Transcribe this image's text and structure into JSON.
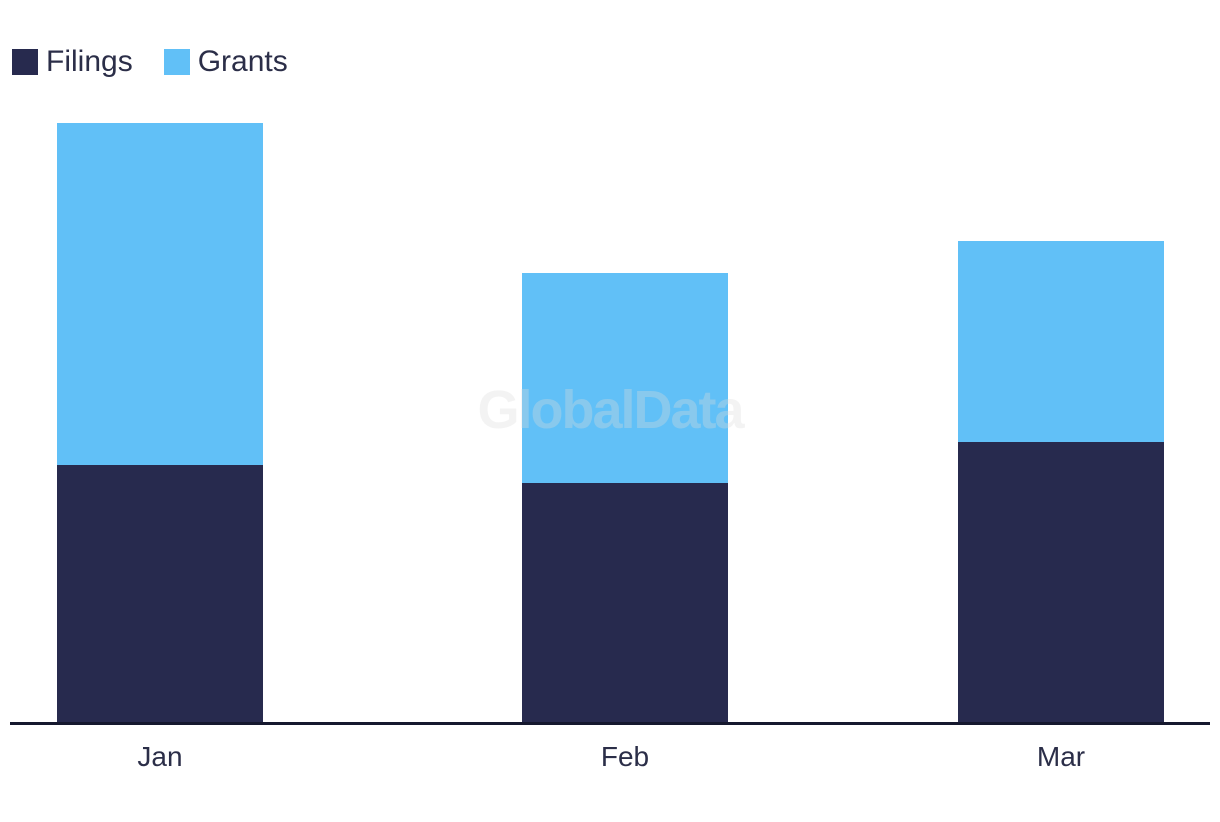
{
  "watermark": {
    "text": "GlobalData"
  },
  "legend": {
    "items": [
      {
        "label": "Filings",
        "color": "#272A4E"
      },
      {
        "label": "Grants",
        "color": "#61C0F7"
      }
    ]
  },
  "chart_data": {
    "type": "bar",
    "stacked": true,
    "title": "",
    "xlabel": "",
    "ylabel": "",
    "categories": [
      "Jan",
      "Feb",
      "Mar"
    ],
    "series": [
      {
        "name": "Filings",
        "color": "#272A4E",
        "values": [
          257,
          239,
          280
        ]
      },
      {
        "name": "Grants",
        "color": "#61C0F7",
        "values": [
          342,
          210,
          201
        ]
      }
    ],
    "stack_totals": [
      599,
      449,
      481
    ],
    "value_axis": "none shown — no ticks, gridlines or value labels; values are relative units measured from bar segment heights",
    "grid": false,
    "legend_position": "top-left"
  },
  "theme": {
    "background": "#FFFFFF",
    "filings_color": "#272A4E",
    "grants_color": "#61C0F7",
    "axis_color": "#15182E",
    "text_color": "#2B2E48",
    "watermark_color": "#DCDCDC55"
  }
}
